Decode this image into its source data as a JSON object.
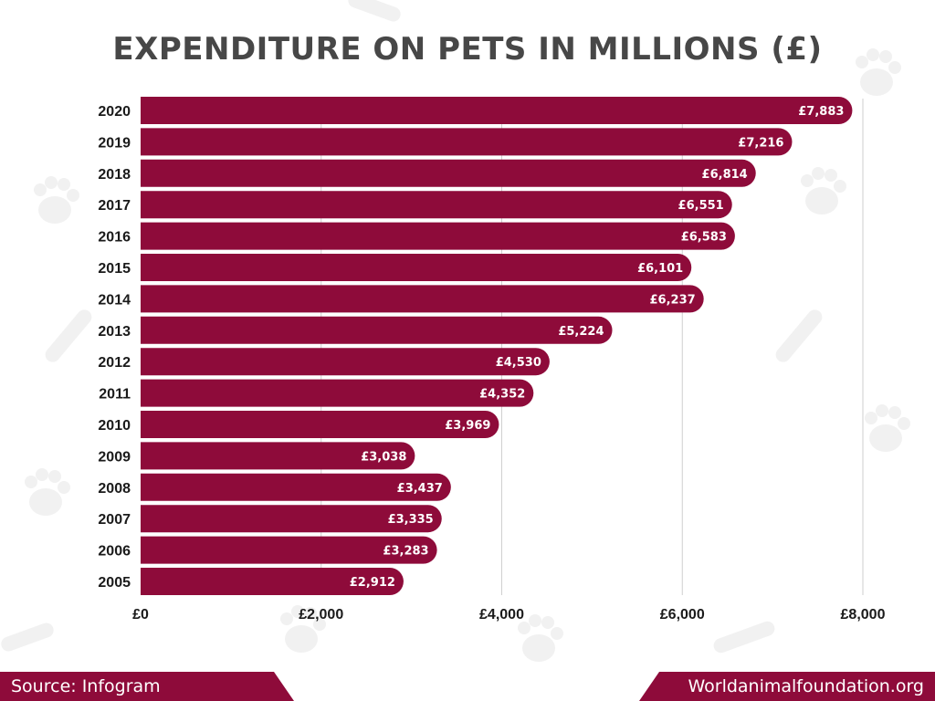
{
  "chart_data": {
    "type": "bar",
    "orientation": "horizontal",
    "title": "EXPENDITURE ON PETS IN MILLIONS (£)",
    "categories": [
      "2020",
      "2019",
      "2018",
      "2017",
      "2016",
      "2015",
      "2014",
      "2013",
      "2012",
      "2011",
      "2010",
      "2009",
      "2008",
      "2007",
      "2006",
      "2005"
    ],
    "values": [
      7883,
      7216,
      6814,
      6551,
      6583,
      6101,
      6237,
      5224,
      4530,
      4352,
      3969,
      3038,
      3437,
      3335,
      3283,
      2912
    ],
    "data_labels": [
      "£7,883",
      "£7,216",
      "£6,814",
      "£6,551",
      "£6,583",
      "£6,101",
      "£6,237",
      "£5,224",
      "£4,530",
      "£4,352",
      "£3,969",
      "£3,038",
      "£3,437",
      "£3,335",
      "£3,283",
      "£2,912"
    ],
    "xlim": [
      0,
      8000
    ],
    "x_ticks": [
      0,
      2000,
      4000,
      6000,
      8000
    ],
    "x_tick_labels": [
      "£0",
      "£2,000",
      "£4,000",
      "£6,000",
      "£8,000"
    ],
    "grid": "vertical",
    "bar_color": "#8e0b3a"
  },
  "footer": {
    "source": "Source: Infogram",
    "website": "Worldanimalfoundation.org"
  }
}
